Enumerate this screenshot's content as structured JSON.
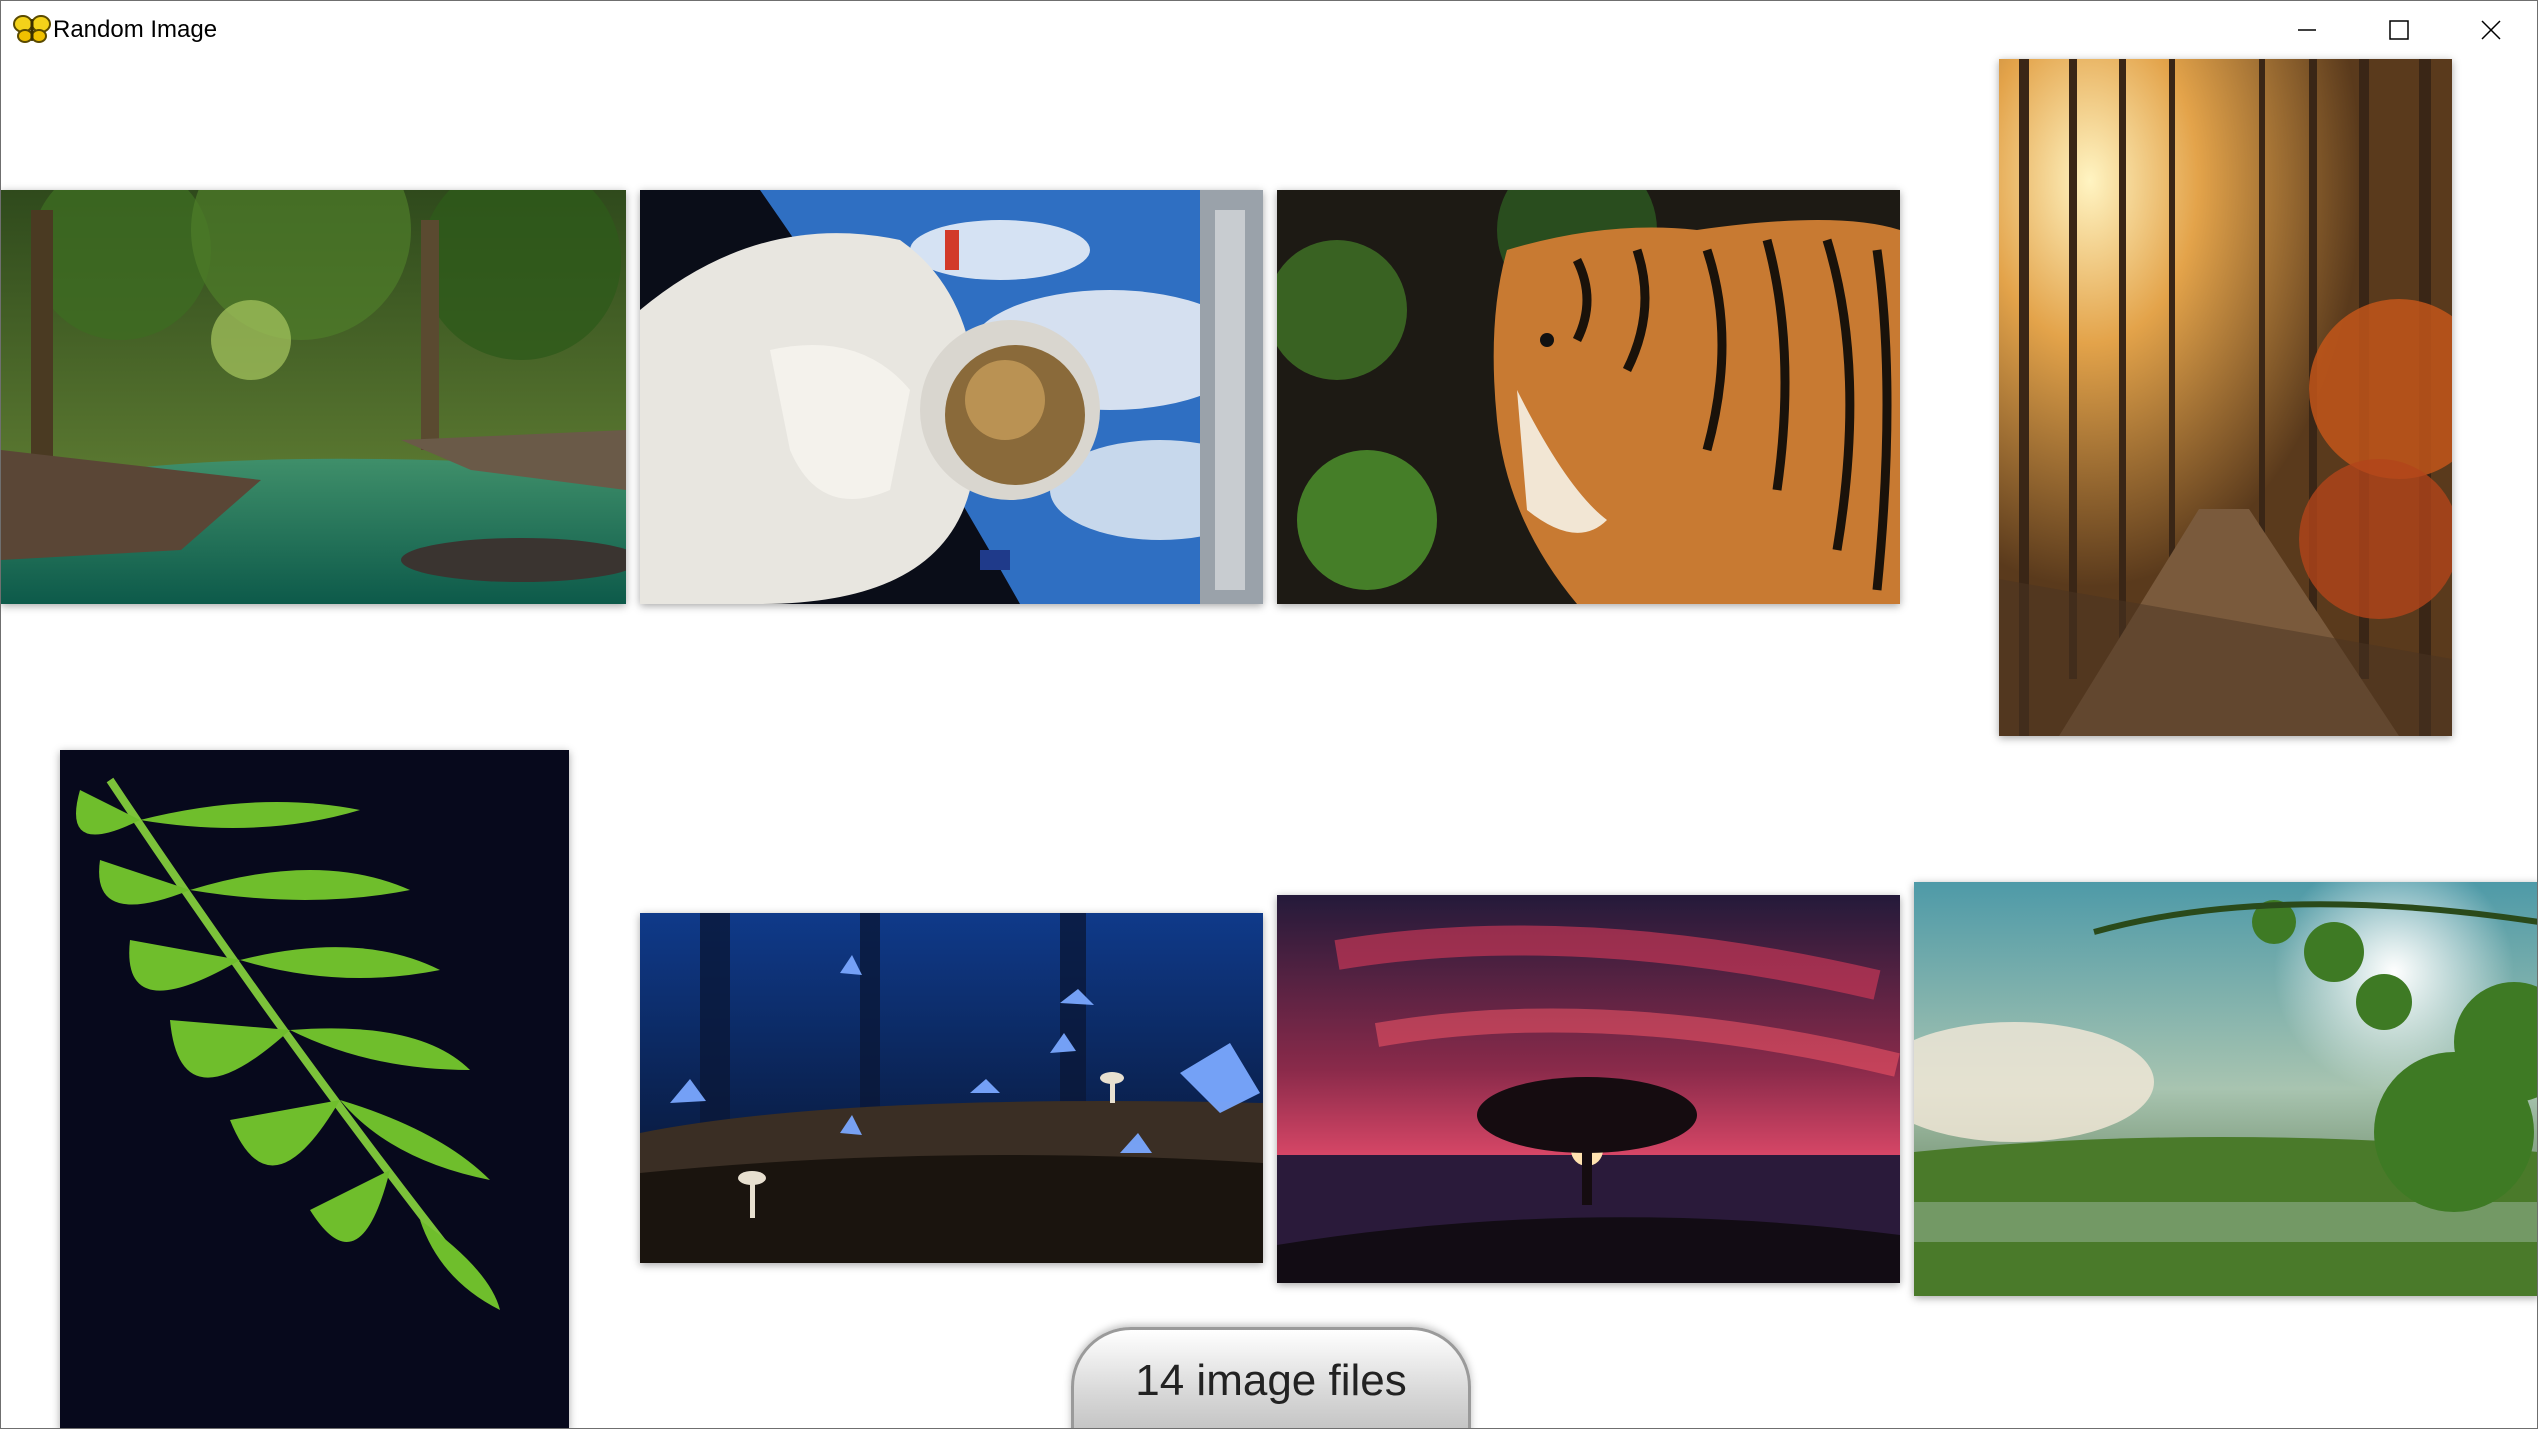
{
  "window": {
    "title": "Random Image",
    "app_icon": "butterfly-icon",
    "controls": {
      "minimize": "minimize-icon",
      "maximize": "maximize-icon",
      "close": "close-icon"
    }
  },
  "images": [
    {
      "name": "photo-forest-stream",
      "subject": "forest stream"
    },
    {
      "name": "photo-astronaut",
      "subject": "astronaut"
    },
    {
      "name": "photo-tiger",
      "subject": "tiger"
    },
    {
      "name": "photo-autumn-forest-path",
      "subject": "autumn forest path"
    },
    {
      "name": "photo-fern",
      "subject": "fern"
    },
    {
      "name": "photo-blue-butterflies",
      "subject": "blue butterflies"
    },
    {
      "name": "photo-sunset-tree",
      "subject": "sunset tree"
    },
    {
      "name": "photo-green-bokeh",
      "subject": "green bokeh"
    }
  ],
  "status": {
    "label": "14 image files"
  },
  "colors": {
    "window_background": "#ffffff",
    "pill_background": "#d8d8d8",
    "pill_border": "#9a9a9a"
  }
}
